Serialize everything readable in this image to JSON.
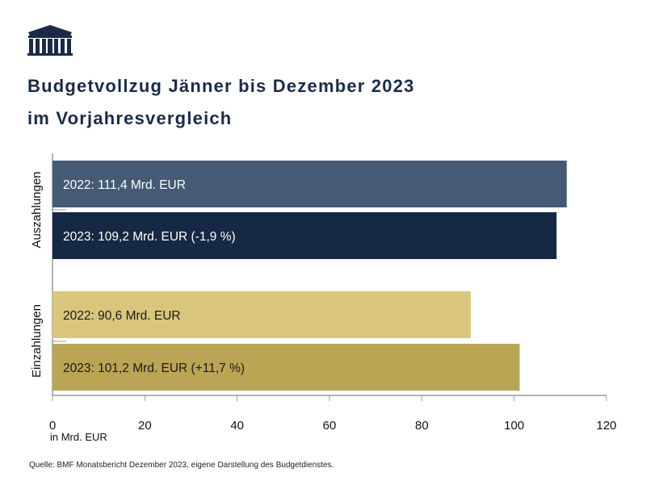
{
  "title_line1": "Budgetvollzug Jänner bis Dezember 2023",
  "title_line2": "im Vorjahresvergleich",
  "source": "Quelle: BMF Monatsbericht Dezember 2023, eigene Darstellung des Budgetdienstes.",
  "logo": "parliament-building-logo",
  "chart_data": {
    "type": "bar",
    "orientation": "horizontal",
    "xlabel": "in Mrd. EUR",
    "xlim": [
      0,
      120
    ],
    "xticks": [
      0,
      20,
      40,
      60,
      80,
      100,
      120
    ],
    "groups": [
      {
        "label": "Auszahlungen",
        "bars": [
          {
            "value": 111.4,
            "label": "2022: 111,4 Mrd. EUR",
            "color": "#445a75",
            "text_color": "#ffffff"
          },
          {
            "value": 109.2,
            "label": "2023: 109,2 Mrd. EUR (-1,9 %)",
            "color": "#152844",
            "text_color": "#ffffff"
          }
        ]
      },
      {
        "label": "Einzahlungen",
        "bars": [
          {
            "value": 90.6,
            "label": "2022: 90,6 Mrd. EUR",
            "color": "#d9c67a",
            "text_color": "#1a1a1a"
          },
          {
            "value": 101.2,
            "label": "2023: 101,2 Mrd. EUR (+11,7 %)",
            "color": "#b9a553",
            "text_color": "#1a1a1a"
          }
        ]
      }
    ],
    "grid": false
  }
}
